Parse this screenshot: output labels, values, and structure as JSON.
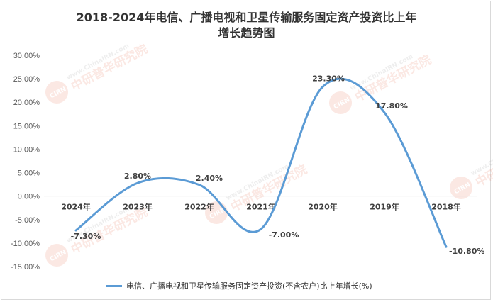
{
  "chart_data": {
    "type": "line",
    "title_line1": "2018-2024年电信、广播电视和卫星传输服务固定资产投资比上年",
    "title_line2": "增长趋势图",
    "categories": [
      "2024年",
      "2023年",
      "2022年",
      "2021年",
      "2020年",
      "2019年",
      "2018年"
    ],
    "series": [
      {
        "name": "电信、广播电视和卫星传输服务固定资产投资(不含农户)比上年增长(%)",
        "values": [
          -7.3,
          2.8,
          2.4,
          -7.0,
          23.3,
          17.8,
          -10.8
        ],
        "data_labels": [
          "-7.30%",
          "2.80%",
          "2.40%",
          "-7.00%",
          "23.30%",
          "17.80%",
          "-10.80%"
        ],
        "color": "#5b9bd5"
      }
    ],
    "y_ticks": [
      "30.00%",
      "25.00%",
      "20.00%",
      "15.00%",
      "10.00%",
      "5.00%",
      "0.00%",
      "-5.00%",
      "-10.00%",
      "-15.00%"
    ],
    "ylim": [
      -15,
      30
    ],
    "smooth": true,
    "grid": false
  },
  "watermark": {
    "logo": "CIRN",
    "url": "www.ChinaIRN.com",
    "name": "中研普华研究院"
  }
}
